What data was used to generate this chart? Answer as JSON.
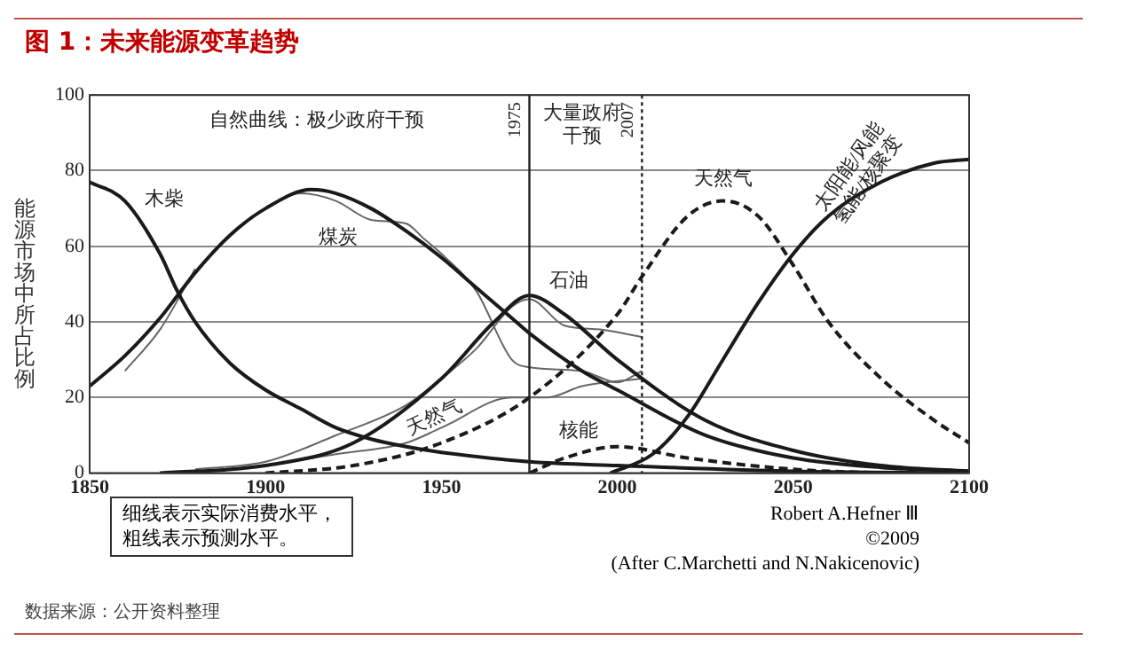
{
  "chart_data": {
    "type": "line",
    "title": "图 1：未来能源变革趋势",
    "ylabel": "能源市场中所占比例",
    "xlim": [
      1850,
      2100
    ],
    "xticks": [
      1850,
      1900,
      1950,
      2000,
      2050,
      2100
    ],
    "ylim": [
      0,
      100
    ],
    "yticks": [
      0,
      20,
      40,
      60,
      80,
      100
    ],
    "grid": "y",
    "legend": false,
    "marker": "none",
    "series": [
      {
        "name": "木柴",
        "color": "#1a1a1a",
        "line_style": "solid",
        "x": [
          1850,
          1860,
          1870,
          1875,
          1880,
          1890,
          1900,
          1910,
          1920,
          1930,
          1940,
          1950,
          1975,
          2000,
          2050,
          2100
        ],
        "values": [
          77,
          72,
          58,
          48,
          40,
          29,
          22,
          17,
          12,
          9,
          7,
          5.5,
          3,
          2,
          0.5,
          0
        ]
      },
      {
        "name": "煤炭",
        "color": "#1a1a1a",
        "line_style": "solid",
        "x": [
          1850,
          1860,
          1870,
          1875,
          1880,
          1890,
          1900,
          1913,
          1920,
          1930,
          1940,
          1950,
          1960,
          1970,
          1975,
          1990,
          2000,
          2025,
          2050,
          2075,
          2100
        ],
        "values": [
          23,
          31,
          41,
          47,
          53,
          63,
          70,
          75,
          74,
          70,
          64,
          57,
          49,
          41,
          37,
          27,
          22,
          10,
          4,
          1.5,
          0.5
        ]
      },
      {
        "name": "石油",
        "color": "#1a1a1a",
        "line_style": "solid",
        "x": [
          1870,
          1900,
          1925,
          1950,
          1965,
          1975,
          1985,
          2000,
          2025,
          2050,
          2075,
          2100
        ],
        "values": [
          0,
          2,
          8,
          25,
          40,
          47,
          42,
          30,
          14,
          6,
          2,
          0.5
        ]
      },
      {
        "name": "天然气",
        "color": "#1a1a1a",
        "line_style": "dashed",
        "x": [
          1900,
          1925,
          1950,
          1975,
          2000,
          2007,
          2020,
          2030,
          2040,
          2050,
          2060,
          2075,
          2090,
          2100
        ],
        "values": [
          0,
          2,
          8,
          20,
          42,
          52,
          68,
          72,
          68,
          55,
          40,
          25,
          14,
          8
        ]
      },
      {
        "name": "核能",
        "color": "#1a1a1a",
        "line_style": "dashed",
        "x": [
          1975,
          1985,
          2000,
          2020,
          2050,
          2075
        ],
        "values": [
          0,
          4,
          7,
          4,
          1,
          0
        ]
      },
      {
        "name": "太阳能/风能氢能/核聚变",
        "color": "#1a1a1a",
        "line_style": "solid",
        "x": [
          1998,
          2010,
          2020,
          2030,
          2040,
          2050,
          2060,
          2075,
          2090,
          2100
        ],
        "values": [
          0,
          5,
          15,
          30,
          45,
          58,
          68,
          77,
          82,
          83
        ]
      },
      {
        "color": "#666666",
        "line_style": "solid",
        "x": [
          1860,
          1870,
          1880
        ],
        "values": [
          27,
          38,
          54
        ]
      },
      {
        "color": "#666666",
        "line_style": "solid",
        "x": [
          1900,
          1910,
          1920,
          1930,
          1940,
          1945,
          1950,
          1960,
          1970,
          1975,
          1990,
          2000,
          2007
        ],
        "values": [
          70,
          74,
          72,
          67,
          66,
          62,
          58,
          48,
          30,
          28,
          27,
          24,
          27
        ]
      },
      {
        "color": "#666666",
        "line_style": "solid",
        "x": [
          1880,
          1900,
          1920,
          1940,
          1950,
          1960,
          1970,
          1975,
          1985,
          1995,
          2007
        ],
        "values": [
          1,
          3,
          10,
          18,
          25,
          33,
          44,
          46,
          39,
          38,
          36
        ]
      },
      {
        "color": "#666666",
        "line_style": "solid",
        "x": [
          1900,
          1920,
          1940,
          1950,
          1970,
          1980,
          1990,
          2007
        ],
        "values": [
          2,
          5,
          8,
          12,
          20,
          20,
          23,
          25
        ]
      }
    ],
    "ref_lines": [
      {
        "axis": "x",
        "value": 1975,
        "label": "1975",
        "line_style": "solid"
      },
      {
        "axis": "x",
        "value": 2007,
        "label": "2007",
        "line_style": "dotted"
      }
    ],
    "annotations": [
      {
        "text": "天然气",
        "x": 1950,
        "y": 8
      },
      "自然曲线：极少政府干预",
      "大量政府干预",
      "细线表示实际消费水平，粗线表示预测水平。",
      "Robert A.Hefner Ⅲ",
      "©2009",
      "(After C.Marchetti and N.Nakicenovic)",
      "数据来源：公开资料整理"
    ]
  }
}
